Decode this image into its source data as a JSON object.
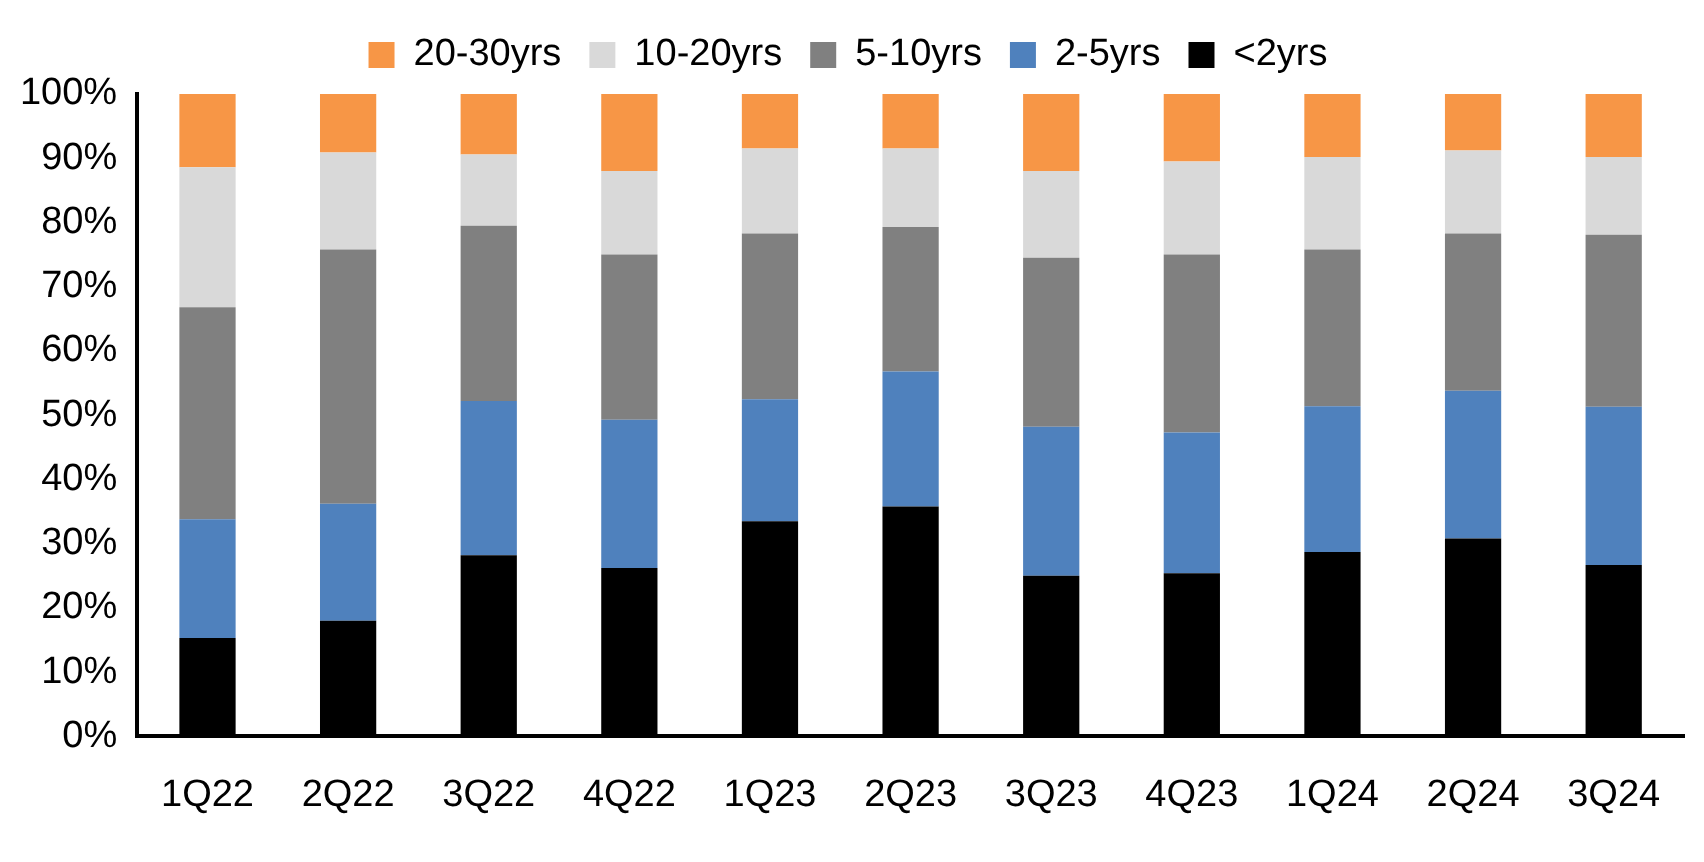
{
  "chart_data": {
    "type": "bar",
    "stacked": true,
    "legend": "top",
    "grid": false,
    "categories": [
      "1Q22",
      "2Q22",
      "3Q22",
      "4Q22",
      "1Q23",
      "2Q23",
      "3Q23",
      "4Q23",
      "1Q24",
      "2Q24",
      "3Q24"
    ],
    "ylim": [
      0,
      100
    ],
    "yticks": [
      {
        "value": 0,
        "label": "0%"
      },
      {
        "value": 10,
        "label": "10%"
      },
      {
        "value": 20,
        "label": "20%"
      },
      {
        "value": 30,
        "label": "30%"
      },
      {
        "value": 40,
        "label": "40%"
      },
      {
        "value": 50,
        "label": "50%"
      },
      {
        "value": 60,
        "label": "60%"
      },
      {
        "value": 70,
        "label": "70%"
      },
      {
        "value": 80,
        "label": "80%"
      },
      {
        "value": 90,
        "label": "90%"
      },
      {
        "value": 100,
        "label": "100%"
      }
    ],
    "series": [
      {
        "name": "<2yrs",
        "color": "#000000",
        "values": [
          15.3,
          18,
          28.2,
          26.2,
          33.5,
          35.8,
          25,
          25.4,
          28.7,
          30.8,
          26.7
        ]
      },
      {
        "name": "2-5yrs",
        "color": "#4f81bd",
        "values": [
          18.5,
          18.2,
          24,
          23.1,
          19,
          21,
          23.2,
          21.9,
          22.7,
          23,
          24.6
        ]
      },
      {
        "name": "5-10yrs",
        "color": "#808080",
        "values": [
          33,
          39.6,
          27.3,
          25.7,
          25.8,
          22.5,
          26.3,
          27.7,
          24.4,
          24.5,
          26.8
        ]
      },
      {
        "name": "10-20yrs",
        "color": "#d9d9d9",
        "values": [
          21.8,
          15.1,
          11.1,
          13,
          13.2,
          12.2,
          13.5,
          14.5,
          14.4,
          12.9,
          12.1
        ]
      },
      {
        "name": "20-30yrs",
        "color": "#f79646",
        "values": [
          11.4,
          9.1,
          9.4,
          12,
          8.5,
          8.5,
          12,
          10.5,
          9.8,
          8.8,
          9.8
        ]
      }
    ]
  }
}
